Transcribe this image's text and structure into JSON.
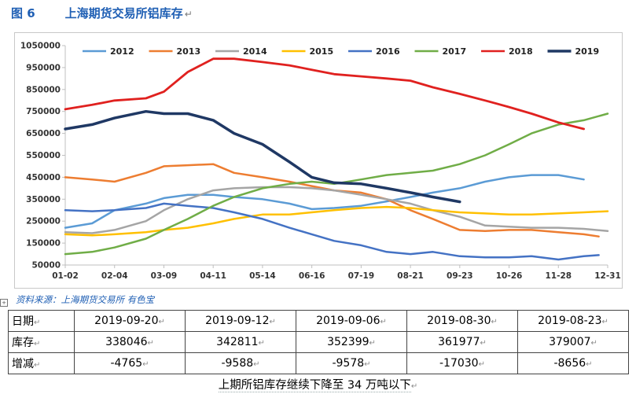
{
  "figure": {
    "label": "图 6",
    "title": "上海期货交易所铝库存"
  },
  "source": "资料来源：上海期货交易所  有色宝",
  "caption": "上期所铝库存继续下降至 34 万吨以下",
  "table": {
    "rows": [
      {
        "head": "日期",
        "cells": [
          "2019-09-20",
          "2019-09-12",
          "2019-09-06",
          "2019-08-30",
          "2019-08-23"
        ]
      },
      {
        "head": "库存",
        "cells": [
          "338046",
          "342811",
          "352399",
          "361977",
          "379007"
        ]
      },
      {
        "head": "增减",
        "cells": [
          "-4765",
          "-9588",
          "-9578",
          "-17030",
          "-8656"
        ]
      }
    ]
  },
  "chart_data": {
    "type": "line",
    "title": "",
    "xlabel": "",
    "ylabel": "",
    "x_ticks": [
      "01-02",
      "02-04",
      "03-09",
      "04-11",
      "05-14",
      "06-16",
      "07-19",
      "08-21",
      "09-23",
      "10-26",
      "11-28",
      "12-31"
    ],
    "y_ticks": [
      "1050000",
      "950000",
      "850000",
      "750000",
      "650000",
      "550000",
      "450000",
      "350000",
      "250000",
      "150000",
      "50000"
    ],
    "ylim": [
      50000,
      1050000
    ],
    "legend_position": "top",
    "grid": false,
    "series": [
      {
        "name": "2012",
        "color": "#5b9bd5",
        "x": [
          "01-02",
          "01-20",
          "02-04",
          "02-25",
          "03-09",
          "03-25",
          "04-11",
          "04-25",
          "05-14",
          "06-01",
          "06-16",
          "07-01",
          "07-19",
          "08-05",
          "08-21",
          "09-05",
          "09-23",
          "10-10",
          "10-26",
          "11-10",
          "11-28",
          "12-15"
        ],
        "y": [
          220000,
          240000,
          300000,
          330000,
          355000,
          370000,
          370000,
          360000,
          350000,
          330000,
          305000,
          310000,
          320000,
          340000,
          360000,
          380000,
          400000,
          430000,
          450000,
          460000,
          460000,
          440000
        ]
      },
      {
        "name": "2013",
        "color": "#ed7d31",
        "x": [
          "01-02",
          "01-20",
          "02-04",
          "02-25",
          "03-09",
          "03-25",
          "04-11",
          "04-25",
          "05-14",
          "06-01",
          "06-16",
          "07-01",
          "07-19",
          "08-05",
          "08-21",
          "09-05",
          "09-23",
          "10-10",
          "10-26",
          "11-10",
          "11-28",
          "12-15",
          "12-25"
        ],
        "y": [
          450000,
          440000,
          430000,
          470000,
          500000,
          505000,
          510000,
          470000,
          450000,
          430000,
          410000,
          390000,
          380000,
          350000,
          300000,
          260000,
          210000,
          205000,
          210000,
          210000,
          200000,
          190000,
          180000
        ]
      },
      {
        "name": "2014",
        "color": "#a5a5a5",
        "x": [
          "01-02",
          "01-20",
          "02-04",
          "02-25",
          "03-09",
          "03-25",
          "04-11",
          "04-25",
          "05-14",
          "06-01",
          "06-16",
          "07-01",
          "07-19",
          "08-05",
          "08-21",
          "09-05",
          "09-23",
          "10-10",
          "10-26",
          "11-10",
          "11-28",
          "12-15",
          "12-31"
        ],
        "y": [
          200000,
          195000,
          210000,
          250000,
          300000,
          350000,
          390000,
          400000,
          405000,
          405000,
          400000,
          390000,
          370000,
          350000,
          330000,
          300000,
          270000,
          230000,
          225000,
          220000,
          220000,
          215000,
          205000
        ]
      },
      {
        "name": "2015",
        "color": "#ffc000",
        "x": [
          "01-02",
          "01-20",
          "02-04",
          "02-25",
          "03-09",
          "03-25",
          "04-11",
          "04-25",
          "05-14",
          "06-01",
          "06-16",
          "07-01",
          "07-19",
          "08-05",
          "08-21",
          "09-05",
          "09-23",
          "10-10",
          "10-26",
          "11-10",
          "11-28",
          "12-15",
          "12-31"
        ],
        "y": [
          190000,
          185000,
          190000,
          200000,
          210000,
          220000,
          240000,
          260000,
          280000,
          280000,
          290000,
          300000,
          310000,
          315000,
          310000,
          300000,
          290000,
          285000,
          280000,
          280000,
          285000,
          290000,
          295000
        ]
      },
      {
        "name": "2016",
        "color": "#4472c4",
        "x": [
          "01-02",
          "01-20",
          "02-04",
          "02-25",
          "03-09",
          "03-25",
          "04-11",
          "04-25",
          "05-14",
          "06-01",
          "06-16",
          "07-01",
          "07-19",
          "08-05",
          "08-21",
          "09-05",
          "09-23",
          "10-10",
          "10-26",
          "11-10",
          "11-28",
          "12-15",
          "12-25"
        ],
        "y": [
          300000,
          295000,
          300000,
          310000,
          330000,
          320000,
          310000,
          290000,
          260000,
          220000,
          190000,
          160000,
          140000,
          110000,
          100000,
          110000,
          90000,
          85000,
          85000,
          90000,
          75000,
          90000,
          95000
        ]
      },
      {
        "name": "2017",
        "color": "#70ad47",
        "x": [
          "01-02",
          "01-20",
          "02-04",
          "02-25",
          "03-09",
          "03-25",
          "04-11",
          "04-25",
          "05-14",
          "06-01",
          "06-16",
          "07-01",
          "07-19",
          "08-05",
          "08-21",
          "09-05",
          "09-23",
          "10-10",
          "10-26",
          "11-10",
          "11-28",
          "12-15",
          "12-31"
        ],
        "y": [
          100000,
          110000,
          130000,
          170000,
          210000,
          260000,
          320000,
          360000,
          400000,
          420000,
          430000,
          420000,
          440000,
          460000,
          470000,
          480000,
          510000,
          550000,
          600000,
          650000,
          690000,
          710000,
          740000
        ]
      },
      {
        "name": "2018",
        "color": "#e0211f",
        "x": [
          "01-02",
          "01-20",
          "02-04",
          "02-25",
          "03-09",
          "03-25",
          "04-11",
          "04-25",
          "05-14",
          "06-01",
          "06-16",
          "07-01",
          "07-19",
          "08-05",
          "08-21",
          "09-05",
          "09-23",
          "10-10",
          "10-26",
          "11-10",
          "11-28",
          "12-15"
        ],
        "y": [
          760000,
          780000,
          800000,
          810000,
          840000,
          930000,
          990000,
          990000,
          975000,
          960000,
          940000,
          920000,
          910000,
          900000,
          890000,
          860000,
          830000,
          800000,
          770000,
          740000,
          700000,
          670000
        ]
      },
      {
        "name": "2019",
        "color": "#1f3864",
        "x": [
          "01-02",
          "01-20",
          "02-04",
          "02-25",
          "03-09",
          "03-25",
          "04-11",
          "04-25",
          "05-14",
          "06-01",
          "06-16",
          "07-01",
          "07-19",
          "08-05",
          "08-21",
          "09-05",
          "09-23"
        ],
        "y": [
          670000,
          690000,
          720000,
          750000,
          740000,
          740000,
          710000,
          650000,
          600000,
          520000,
          450000,
          425000,
          420000,
          400000,
          380000,
          360000,
          338046
        ]
      }
    ]
  }
}
